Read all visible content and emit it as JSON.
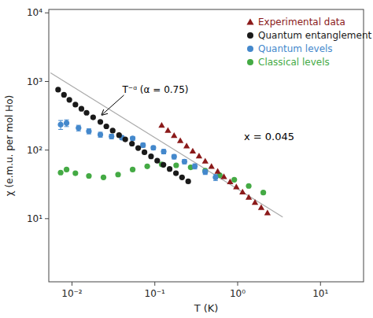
{
  "chart_data": {
    "type": "scatter",
    "xlabel": "T (K)",
    "ylabel": "χ (e.m.u. per mol Ho)",
    "log": true,
    "grid": false,
    "legend": "upper right",
    "xlim": [
      0.005248,
      33.11
    ],
    "ylim": [
      1.202,
      11220
    ],
    "xticks": [
      {
        "value": 0.01,
        "label": "10⁻²"
      },
      {
        "value": 0.1,
        "label": "10⁻¹"
      },
      {
        "value": 1,
        "label": "10⁰"
      },
      {
        "value": 10,
        "label": "10¹"
      }
    ],
    "yticks": [
      {
        "value": 10,
        "label": "10¹"
      },
      {
        "value": 100,
        "label": "10²"
      },
      {
        "value": 1000,
        "label": "10³"
      },
      {
        "value": 10000,
        "label": "10⁴"
      }
    ],
    "series": [
      {
        "name": "Experimental data",
        "color": "#8B1A1A",
        "marker": "triangle",
        "x": [
          0.121,
          0.144,
          0.171,
          0.203,
          0.242,
          0.287,
          0.342,
          0.406,
          0.483,
          0.574,
          0.682,
          0.811,
          0.964,
          1.146,
          1.362,
          1.619,
          1.926,
          2.29
        ],
        "values": [
          230,
          194,
          163,
          137,
          115,
          97,
          82,
          69,
          58,
          49,
          41,
          34.5,
          29,
          24.5,
          20.5,
          17.3,
          14.5,
          12.2
        ]
      },
      {
        "name": "Quantum entanglement",
        "color": "#1a1a1a",
        "marker": "circle",
        "x": [
          0.0068,
          0.008,
          0.0093,
          0.011,
          0.013,
          0.015,
          0.018,
          0.022,
          0.026,
          0.031,
          0.037,
          0.044,
          0.053,
          0.063,
          0.075,
          0.09,
          0.107,
          0.127,
          0.151,
          0.18,
          0.213,
          0.253
        ],
        "values": [
          760,
          640,
          540,
          460,
          400,
          350,
          300,
          258,
          222,
          192,
          165,
          143,
          124,
          107,
          93,
          81,
          70,
          61,
          53,
          46,
          40,
          35
        ]
      },
      {
        "name": "Quantum levels",
        "color": "#4488cc",
        "marker": "circle",
        "x": [
          0.0073,
          0.0086,
          0.012,
          0.016,
          0.022,
          0.03,
          0.04,
          0.054,
          0.072,
          0.096,
          0.128,
          0.171,
          0.228,
          0.304,
          0.406,
          0.541
        ],
        "values": [
          235,
          248,
          210,
          188,
          168,
          158,
          152,
          148,
          118,
          108,
          95,
          80,
          68,
          58,
          48,
          40
        ],
        "errors": [
          35,
          28,
          20,
          16,
          14,
          12,
          10,
          9,
          8,
          7,
          7,
          6,
          5,
          5,
          4,
          4
        ]
      },
      {
        "name": "Classical levels",
        "color": "#44aa44",
        "marker": "circle",
        "x": [
          0.0073,
          0.0086,
          0.011,
          0.016,
          0.024,
          0.036,
          0.054,
          0.081,
          0.121,
          0.181,
          0.271,
          0.406,
          0.608,
          0.91,
          1.36,
          2.04
        ],
        "values": [
          47,
          52,
          46,
          42,
          40,
          44,
          52,
          58,
          62,
          60,
          56,
          50,
          43,
          37,
          30,
          24
        ]
      },
      {
        "type": "line",
        "color": "#aaaaaa",
        "x": [
          0.0055,
          3.5
        ],
        "values": [
          1336.88,
          10.55
        ]
      }
    ],
    "annotations": [
      {
        "text": "x = 0.045"
      },
      {
        "text": "T⁻ᵅ (α = 0.75)",
        "x": 0.022,
        "y": 310
      }
    ]
  }
}
